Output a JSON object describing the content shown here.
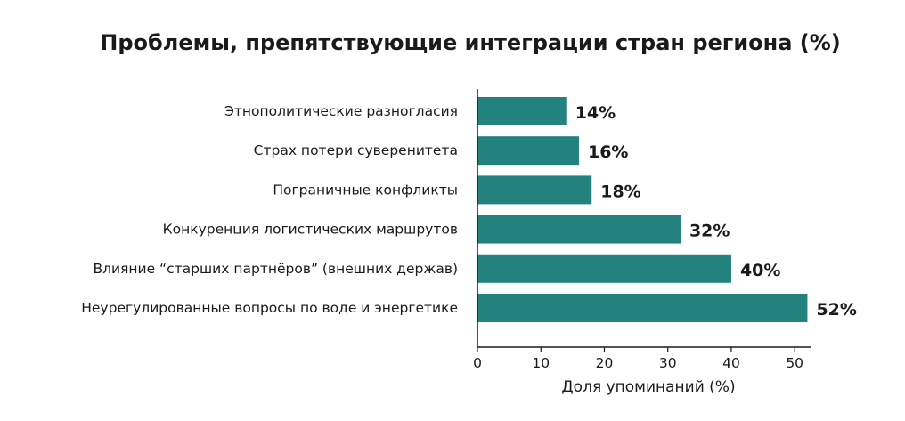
{
  "chart_data": {
    "type": "bar",
    "orientation": "horizontal",
    "title": "Проблемы, препятствующие интеграции стран региона (%)",
    "categories": [
      "Этнополитические разногласия",
      "Страх потери суверенитета",
      "Пограничные конфликты",
      "Конкуренция логистических маршрутов",
      "Влияние “старших партнёров” (внешних держав)",
      "Неурегулированные вопросы по воде и энергетике"
    ],
    "values": [
      14,
      16,
      18,
      32,
      40,
      52
    ],
    "value_labels": [
      "14%",
      "16%",
      "18%",
      "32%",
      "40%",
      "52%"
    ],
    "xlabel": "Доля упоминаний (%)",
    "ylabel": "",
    "xlim": [
      0,
      52.5
    ],
    "xticks": [
      0,
      10,
      20,
      30,
      40,
      50
    ],
    "grid": false,
    "bar_color": "#23827e"
  }
}
